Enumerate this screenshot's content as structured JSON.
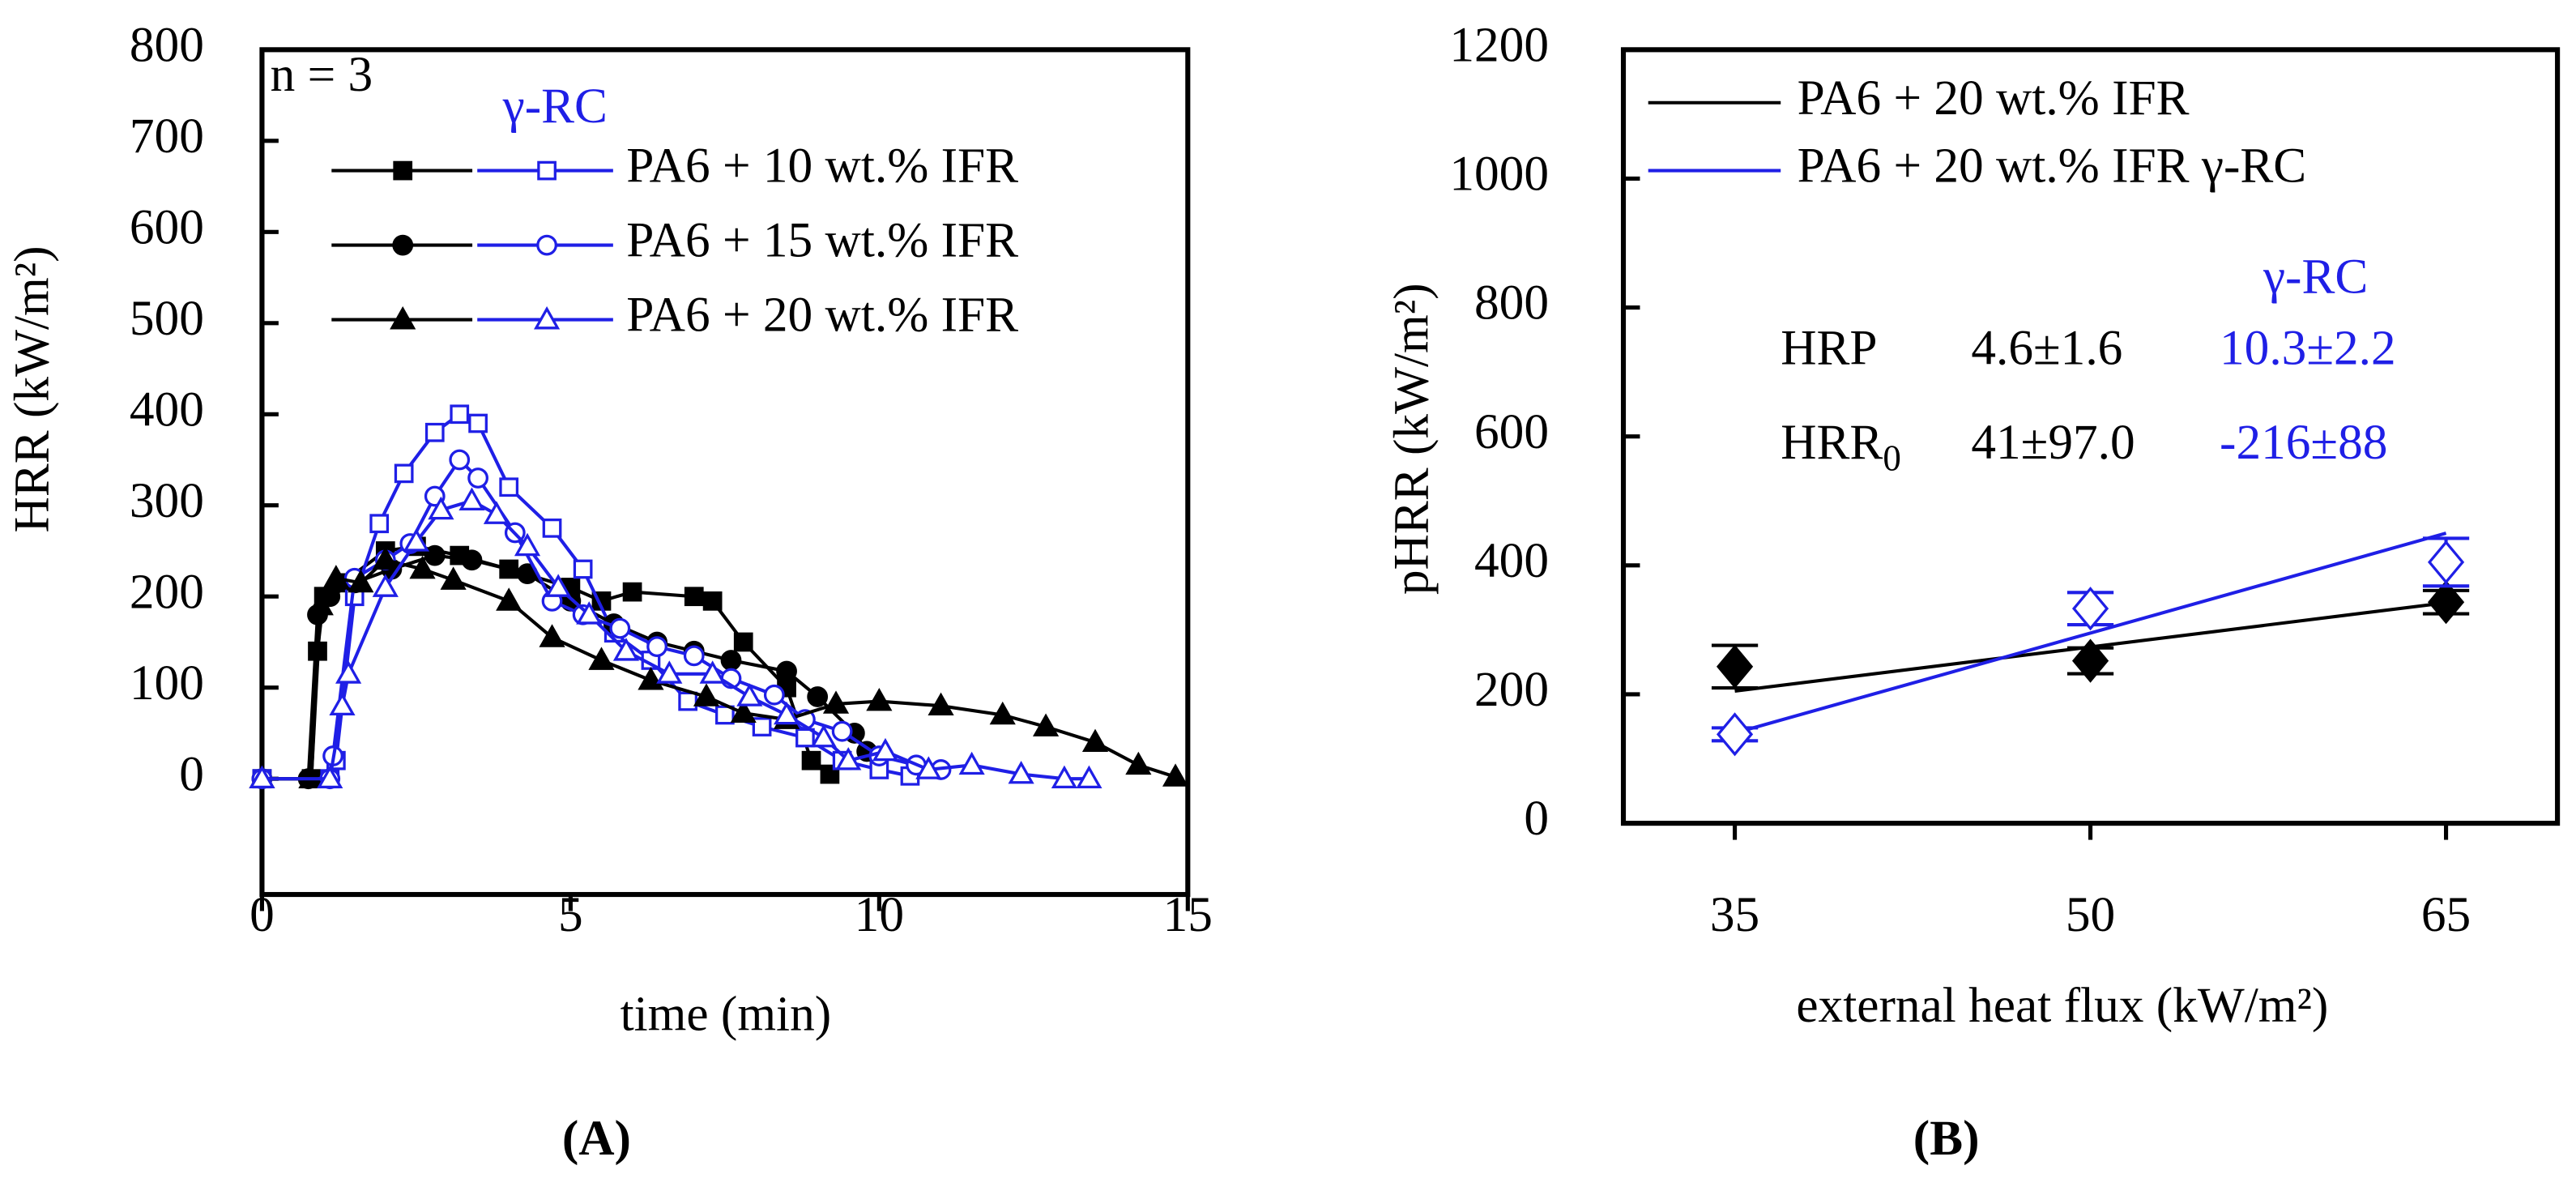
{
  "chart_data": [
    {
      "type": "line",
      "label": "(A)",
      "x_label": "time (min)",
      "y_label": "HRR (kW/m²)",
      "xlim": [
        0,
        15
      ],
      "ylim": [
        -127,
        800
      ],
      "xticks": [
        0,
        5,
        10,
        15
      ],
      "yticks": [
        0,
        100,
        200,
        300,
        400,
        500,
        600,
        700,
        800
      ],
      "annotation": "n = 3",
      "group_header": "γ-RC",
      "series": [
        {
          "name": "PA6 + 10 wt.% IFR",
          "marker": "square",
          "reference": {
            "color": "#000000",
            "x": [
              0,
              0.8,
              0.9,
              1.0,
              1.3,
              2.0,
              2.5,
              3.2,
              4.0,
              5.0,
              5.5,
              6.0,
              7.0,
              7.3,
              7.8,
              8.5,
              8.9,
              9.2
            ],
            "values": [
              0,
              0,
              140,
              200,
              215,
              250,
              255,
              245,
              230,
              210,
              195,
              205,
              200,
              195,
              150,
              100,
              20,
              5
            ]
          },
          "irradiated": {
            "color": "#1f1fe6",
            "x": [
              0,
              1.1,
              1.2,
              1.5,
              1.9,
              2.3,
              2.8,
              3.2,
              3.5,
              4.0,
              4.7,
              5.2,
              5.7,
              6.3,
              6.9,
              7.5,
              8.1,
              8.8,
              9.4,
              10.0,
              10.5
            ],
            "values": [
              0,
              0,
              20,
              200,
              280,
              335,
              380,
              400,
              390,
              320,
              275,
              230,
              160,
              130,
              85,
              70,
              57,
              45,
              20,
              10,
              3
            ]
          }
        },
        {
          "name": "PA6 + 15 wt.% IFR",
          "marker": "circle",
          "reference": {
            "color": "#000000",
            "x": [
              0,
              0.75,
              0.9,
              1.1,
              1.5,
              2.1,
              2.8,
              3.4,
              4.3,
              5.0,
              5.7,
              6.4,
              7.0,
              7.6,
              8.5,
              9.0,
              9.6,
              9.8
            ],
            "values": [
              0,
              0,
              180,
              200,
              215,
              230,
              245,
              240,
              225,
              195,
              170,
              150,
              140,
              130,
              118,
              90,
              50,
              30
            ]
          },
          "irradiated": {
            "color": "#1f1fe6",
            "x": [
              0,
              1.1,
              1.15,
              1.5,
              2.0,
              2.4,
              2.8,
              3.2,
              3.5,
              4.1,
              4.7,
              5.2,
              5.8,
              6.4,
              7.0,
              7.6,
              8.3,
              8.8,
              9.4,
              10.0,
              10.6,
              11.0
            ],
            "values": [
              0,
              0,
              25,
              220,
              240,
              258,
              310,
              350,
              330,
              270,
              195,
              180,
              165,
              145,
              135,
              110,
              92,
              65,
              52,
              25,
              15,
              10
            ]
          }
        },
        {
          "name": "PA6 + 20 wt.% IFR",
          "marker": "triangle",
          "reference": {
            "color": "#000000",
            "x": [
              0,
              0.8,
              0.95,
              1.2,
              1.6,
              2.0,
              2.6,
              3.1,
              4.0,
              4.7,
              5.5,
              6.3,
              7.2,
              7.8,
              8.5,
              9.3,
              10.0,
              11.0,
              12.0,
              12.7,
              13.5,
              14.2,
              14.8
            ],
            "values": [
              0,
              0,
              190,
              220,
              215,
              240,
              230,
              218,
              195,
              155,
              130,
              108,
              90,
              72,
              65,
              82,
              85,
              80,
              70,
              57,
              40,
              15,
              2
            ]
          },
          "irradiated": {
            "color": "#1f1fe6",
            "x": [
              0,
              1.1,
              1.3,
              1.4,
              2.0,
              2.5,
              2.9,
              3.4,
              3.8,
              4.3,
              4.8,
              5.3,
              5.9,
              6.6,
              7.3,
              7.9,
              8.5,
              9.1,
              9.5,
              10.1,
              10.8,
              11.5,
              12.3,
              13.0,
              13.4
            ],
            "values": [
              0,
              0,
              80,
              115,
              210,
              260,
              295,
              305,
              290,
              255,
              210,
              180,
              140,
              115,
              115,
              90,
              70,
              45,
              20,
              30,
              10,
              15,
              5,
              0,
              0
            ]
          }
        }
      ]
    },
    {
      "type": "scatter",
      "label": "(B)",
      "x_label": "external heat flux (kW/m²)",
      "y_label": "pHRR (kW/m²)",
      "xlim": [
        30.3,
        69.7
      ],
      "ylim": [
        0,
        1200
      ],
      "xticks": [
        35,
        50,
        65
      ],
      "yticks": [
        0,
        200,
        400,
        600,
        800,
        1000,
        1200
      ],
      "group_header": "γ-RC",
      "series": [
        {
          "name": "PA6 + 20 wt.% IFR",
          "color": "#000000",
          "marker": "diamond",
          "filled": true,
          "x": [
            35,
            50,
            65
          ],
          "values": [
            243,
            252,
            343
          ],
          "errors": [
            33,
            20,
            18
          ],
          "fit": {
            "x": [
              35,
              65
            ],
            "values": [
              205,
              342
            ]
          }
        },
        {
          "name": "PA6 + 20 wt.% IFR γ-RC",
          "color": "#1f1fe6",
          "marker": "diamond",
          "filled": false,
          "x": [
            35,
            50,
            65
          ],
          "values": [
            138,
            333,
            405
          ],
          "errors": [
            10,
            25,
            37
          ],
          "fit": {
            "x": [
              35,
              65
            ],
            "values": [
              140,
              450
            ]
          }
        }
      ],
      "table": {
        "column_colors": [
          "#000000",
          "#000000",
          "#1f1fe6"
        ],
        "rows": [
          [
            {
              "text": "HRP"
            },
            {
              "text": "4.6±1.6"
            },
            {
              "text": "10.3±2.2"
            }
          ],
          [
            {
              "text": "HRR",
              "subscript": "0"
            },
            {
              "text": "41±97.0"
            },
            {
              "text": "-216±88"
            }
          ]
        ]
      }
    }
  ]
}
